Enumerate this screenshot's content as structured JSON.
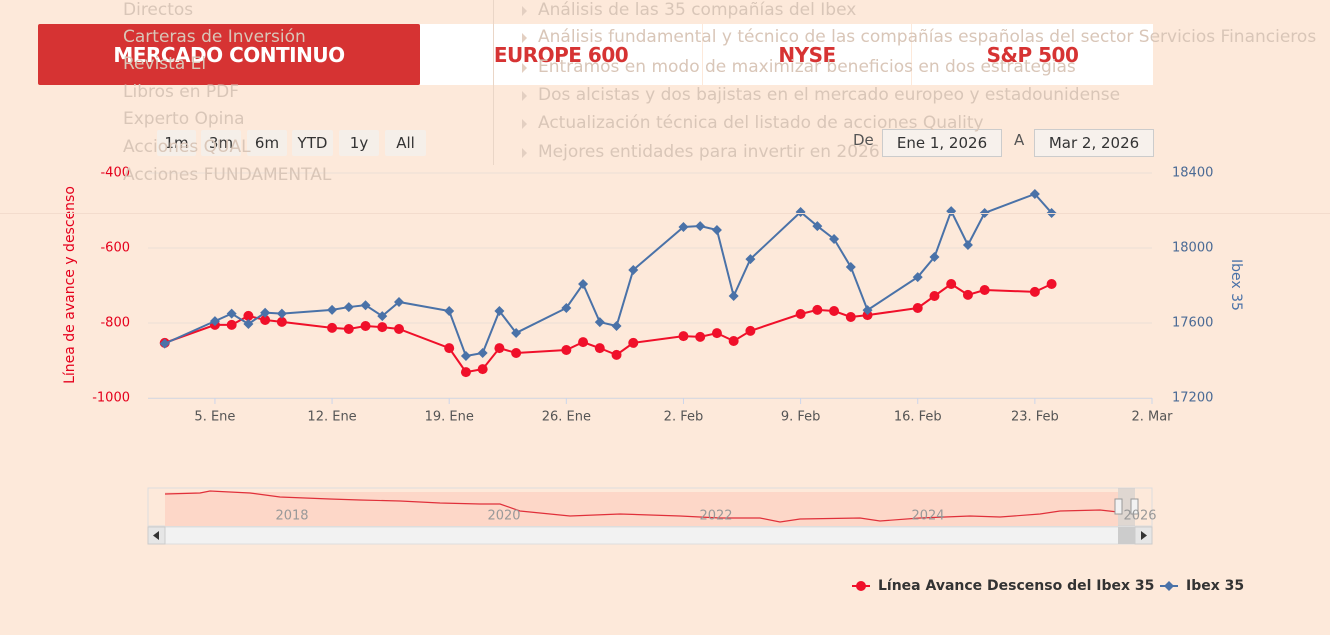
{
  "background_menu": {
    "left": [
      "Directos",
      "Carteras de Inversión",
      "Revista El",
      "Libros en PDF",
      "Experto Opina",
      "Acciones QUAL",
      "Acciones FUNDAMENTAL"
    ],
    "right": [
      "Análisis de las 35 compañías del Ibex",
      "Análisis fundamental y técnico de las compañías españolas del sector Servicios Financieros",
      "Entramos en modo de maximizar beneficios en dos estrategias",
      "Dos alcistas y dos bajistas en el mercado europeo y estadounidense",
      "Actualización técnica del listado de acciones Quality",
      "Mejores entidades para invertir en 2026"
    ]
  },
  "tabs": [
    "MERCADO CONTINUO",
    "EUROPE 600",
    "NYSE",
    "S&P 500"
  ],
  "range_buttons": [
    "1m",
    "3m",
    "6m",
    "YTD",
    "1y",
    "All"
  ],
  "date_range": {
    "from_label": "De",
    "from": "Ene 1, 2026",
    "to_label": "A",
    "to": "Mar 2, 2026"
  },
  "chart_data": {
    "type": "line",
    "y_label": "Línea de avance y descenso",
    "y2_label": "Ibex 35",
    "x": [
      2,
      5,
      6,
      7,
      8,
      9,
      12,
      13,
      14,
      15,
      16,
      19,
      20,
      21,
      22,
      23,
      26,
      27,
      28,
      29,
      30,
      33,
      34,
      35,
      36,
      37,
      40,
      41,
      42,
      43,
      44,
      47,
      48,
      49,
      50,
      51,
      54,
      55
    ],
    "xlim": [
      1,
      61
    ],
    "xticks": [
      {
        "value": 5,
        "label": "5. Ene"
      },
      {
        "value": 12,
        "label": "12. Ene"
      },
      {
        "value": 19,
        "label": "19. Ene"
      },
      {
        "value": 26,
        "label": "26. Ene"
      },
      {
        "value": 33,
        "label": "2. Feb"
      },
      {
        "value": 40,
        "label": "9. Feb"
      },
      {
        "value": 47,
        "label": "16. Feb"
      },
      {
        "value": 54,
        "label": "23. Feb"
      },
      {
        "value": 61,
        "label": "2. Mar"
      }
    ],
    "ylim": [
      -1000,
      -400
    ],
    "yticks": [
      -400,
      -600,
      -800,
      -1000
    ],
    "y2lim": [
      17200,
      18400
    ],
    "y2ticks": [
      18400,
      18000,
      17600,
      17200
    ],
    "grid": true,
    "legend": "bottom-right",
    "series": [
      {
        "name": "Línea Avance Descenso del Ibex 35",
        "color": "#f0102a",
        "marker": "circle",
        "values": [
          -853,
          -805,
          -805,
          -781,
          -792,
          -797,
          -813,
          -816,
          -808,
          -811,
          -816,
          -867,
          -931,
          -923,
          -867,
          -880,
          -872,
          -851,
          -867,
          -885,
          -853,
          -835,
          -837,
          -827,
          -848,
          -821,
          -776,
          -765,
          -768,
          -784,
          -779,
          -760,
          -728,
          -696,
          -725,
          -712,
          -717,
          -696
        ]
      },
      {
        "name": "Ibex 35",
        "color": "#4a72a8",
        "marker": "diamond",
        "axis": "y2",
        "values": [
          17490,
          17610,
          17650,
          17595,
          17655,
          17650,
          17670,
          17685,
          17695,
          17637,
          17712,
          17664,
          17424,
          17440,
          17664,
          17547,
          17680,
          17808,
          17605,
          17584,
          17883,
          18112,
          18117,
          18096,
          17744,
          17941,
          18192,
          18117,
          18048,
          17899,
          17669,
          17845,
          17952,
          18197,
          18016,
          18187,
          18288,
          18187
        ]
      }
    ]
  },
  "navigator": {
    "labels": [
      "2018",
      "2020",
      "2022",
      "2024",
      "2026"
    ]
  }
}
